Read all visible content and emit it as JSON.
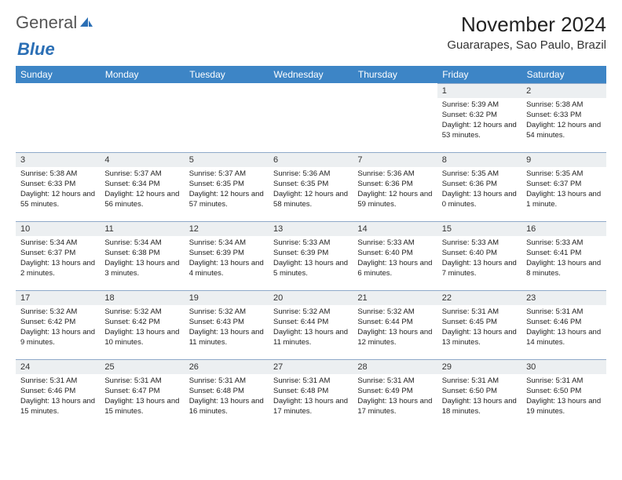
{
  "logo": {
    "text1": "General",
    "text2": "Blue"
  },
  "title": "November 2024",
  "location": "Guararapes, Sao Paulo, Brazil",
  "colors": {
    "header_bg": "#3d85c6",
    "header_fg": "#ffffff",
    "daynum_bg": "#eceff1",
    "daynum_border": "#8fa9c9",
    "text": "#222222",
    "logo_blue": "#2b6fb5"
  },
  "dayNames": [
    "Sunday",
    "Monday",
    "Tuesday",
    "Wednesday",
    "Thursday",
    "Friday",
    "Saturday"
  ],
  "weeks": [
    [
      {
        "blank": true
      },
      {
        "blank": true
      },
      {
        "blank": true
      },
      {
        "blank": true
      },
      {
        "blank": true
      },
      {
        "num": "1",
        "sunrise": "Sunrise: 5:39 AM",
        "sunset": "Sunset: 6:32 PM",
        "daylight": "Daylight: 12 hours and 53 minutes."
      },
      {
        "num": "2",
        "sunrise": "Sunrise: 5:38 AM",
        "sunset": "Sunset: 6:33 PM",
        "daylight": "Daylight: 12 hours and 54 minutes."
      }
    ],
    [
      {
        "num": "3",
        "sunrise": "Sunrise: 5:38 AM",
        "sunset": "Sunset: 6:33 PM",
        "daylight": "Daylight: 12 hours and 55 minutes."
      },
      {
        "num": "4",
        "sunrise": "Sunrise: 5:37 AM",
        "sunset": "Sunset: 6:34 PM",
        "daylight": "Daylight: 12 hours and 56 minutes."
      },
      {
        "num": "5",
        "sunrise": "Sunrise: 5:37 AM",
        "sunset": "Sunset: 6:35 PM",
        "daylight": "Daylight: 12 hours and 57 minutes."
      },
      {
        "num": "6",
        "sunrise": "Sunrise: 5:36 AM",
        "sunset": "Sunset: 6:35 PM",
        "daylight": "Daylight: 12 hours and 58 minutes."
      },
      {
        "num": "7",
        "sunrise": "Sunrise: 5:36 AM",
        "sunset": "Sunset: 6:36 PM",
        "daylight": "Daylight: 12 hours and 59 minutes."
      },
      {
        "num": "8",
        "sunrise": "Sunrise: 5:35 AM",
        "sunset": "Sunset: 6:36 PM",
        "daylight": "Daylight: 13 hours and 0 minutes."
      },
      {
        "num": "9",
        "sunrise": "Sunrise: 5:35 AM",
        "sunset": "Sunset: 6:37 PM",
        "daylight": "Daylight: 13 hours and 1 minute."
      }
    ],
    [
      {
        "num": "10",
        "sunrise": "Sunrise: 5:34 AM",
        "sunset": "Sunset: 6:37 PM",
        "daylight": "Daylight: 13 hours and 2 minutes."
      },
      {
        "num": "11",
        "sunrise": "Sunrise: 5:34 AM",
        "sunset": "Sunset: 6:38 PM",
        "daylight": "Daylight: 13 hours and 3 minutes."
      },
      {
        "num": "12",
        "sunrise": "Sunrise: 5:34 AM",
        "sunset": "Sunset: 6:39 PM",
        "daylight": "Daylight: 13 hours and 4 minutes."
      },
      {
        "num": "13",
        "sunrise": "Sunrise: 5:33 AM",
        "sunset": "Sunset: 6:39 PM",
        "daylight": "Daylight: 13 hours and 5 minutes."
      },
      {
        "num": "14",
        "sunrise": "Sunrise: 5:33 AM",
        "sunset": "Sunset: 6:40 PM",
        "daylight": "Daylight: 13 hours and 6 minutes."
      },
      {
        "num": "15",
        "sunrise": "Sunrise: 5:33 AM",
        "sunset": "Sunset: 6:40 PM",
        "daylight": "Daylight: 13 hours and 7 minutes."
      },
      {
        "num": "16",
        "sunrise": "Sunrise: 5:33 AM",
        "sunset": "Sunset: 6:41 PM",
        "daylight": "Daylight: 13 hours and 8 minutes."
      }
    ],
    [
      {
        "num": "17",
        "sunrise": "Sunrise: 5:32 AM",
        "sunset": "Sunset: 6:42 PM",
        "daylight": "Daylight: 13 hours and 9 minutes."
      },
      {
        "num": "18",
        "sunrise": "Sunrise: 5:32 AM",
        "sunset": "Sunset: 6:42 PM",
        "daylight": "Daylight: 13 hours and 10 minutes."
      },
      {
        "num": "19",
        "sunrise": "Sunrise: 5:32 AM",
        "sunset": "Sunset: 6:43 PM",
        "daylight": "Daylight: 13 hours and 11 minutes."
      },
      {
        "num": "20",
        "sunrise": "Sunrise: 5:32 AM",
        "sunset": "Sunset: 6:44 PM",
        "daylight": "Daylight: 13 hours and 11 minutes."
      },
      {
        "num": "21",
        "sunrise": "Sunrise: 5:32 AM",
        "sunset": "Sunset: 6:44 PM",
        "daylight": "Daylight: 13 hours and 12 minutes."
      },
      {
        "num": "22",
        "sunrise": "Sunrise: 5:31 AM",
        "sunset": "Sunset: 6:45 PM",
        "daylight": "Daylight: 13 hours and 13 minutes."
      },
      {
        "num": "23",
        "sunrise": "Sunrise: 5:31 AM",
        "sunset": "Sunset: 6:46 PM",
        "daylight": "Daylight: 13 hours and 14 minutes."
      }
    ],
    [
      {
        "num": "24",
        "sunrise": "Sunrise: 5:31 AM",
        "sunset": "Sunset: 6:46 PM",
        "daylight": "Daylight: 13 hours and 15 minutes."
      },
      {
        "num": "25",
        "sunrise": "Sunrise: 5:31 AM",
        "sunset": "Sunset: 6:47 PM",
        "daylight": "Daylight: 13 hours and 15 minutes."
      },
      {
        "num": "26",
        "sunrise": "Sunrise: 5:31 AM",
        "sunset": "Sunset: 6:48 PM",
        "daylight": "Daylight: 13 hours and 16 minutes."
      },
      {
        "num": "27",
        "sunrise": "Sunrise: 5:31 AM",
        "sunset": "Sunset: 6:48 PM",
        "daylight": "Daylight: 13 hours and 17 minutes."
      },
      {
        "num": "28",
        "sunrise": "Sunrise: 5:31 AM",
        "sunset": "Sunset: 6:49 PM",
        "daylight": "Daylight: 13 hours and 17 minutes."
      },
      {
        "num": "29",
        "sunrise": "Sunrise: 5:31 AM",
        "sunset": "Sunset: 6:50 PM",
        "daylight": "Daylight: 13 hours and 18 minutes."
      },
      {
        "num": "30",
        "sunrise": "Sunrise: 5:31 AM",
        "sunset": "Sunset: 6:50 PM",
        "daylight": "Daylight: 13 hours and 19 minutes."
      }
    ]
  ]
}
